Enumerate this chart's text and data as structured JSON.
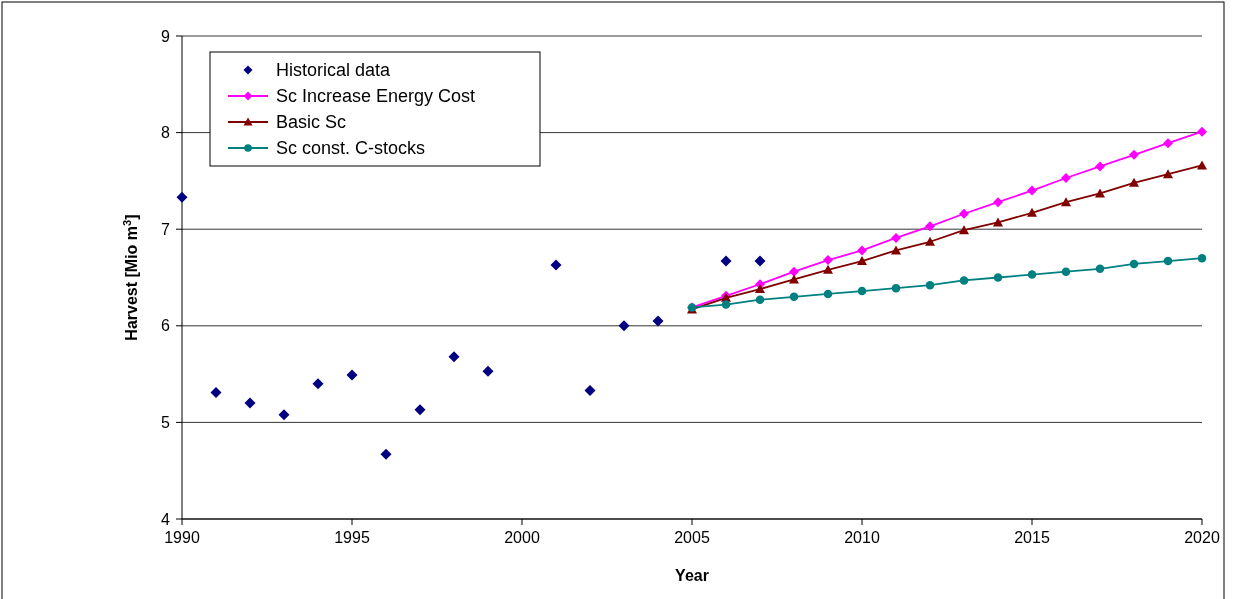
{
  "chart_data": {
    "type": "line",
    "xlabel": "Year",
    "ylabel": "Harvest [Mio m$^{3}$]",
    "xlim": [
      1990,
      2020
    ],
    "xticks": [
      1990,
      1995,
      2000,
      2005,
      2010,
      2015,
      2020
    ],
    "ylim": [
      4,
      9
    ],
    "yticks": [
      4,
      5,
      6,
      7,
      8,
      9
    ],
    "grid": "y",
    "legend": "top left",
    "line_style": "solid",
    "series": [
      {
        "name": "Historical data",
        "type": "scatter",
        "marker": "diamond",
        "color": "#000080",
        "x": [
          1990,
          1991,
          1992,
          1993,
          1994,
          1995,
          1996,
          1997,
          1998,
          1999,
          2001,
          2002,
          2003,
          2004,
          2006,
          2007
        ],
        "values": [
          7.33,
          5.31,
          5.2,
          5.08,
          5.4,
          5.49,
          4.67,
          5.13,
          5.68,
          5.53,
          6.63,
          5.33,
          6.0,
          6.05,
          6.67,
          6.67
        ]
      },
      {
        "name": "Sc Increase Energy Cost",
        "marker": "diamond",
        "color": "#ff00ff",
        "x": [
          2005,
          2006,
          2007,
          2008,
          2009,
          2010,
          2011,
          2012,
          2013,
          2014,
          2015,
          2016,
          2017,
          2018,
          2019,
          2020
        ],
        "values": [
          6.19,
          6.31,
          6.43,
          6.56,
          6.68,
          6.78,
          6.91,
          7.03,
          7.16,
          7.28,
          7.4,
          7.53,
          7.65,
          7.77,
          7.89,
          8.01
        ]
      },
      {
        "name": "Basic Sc",
        "marker": "triangle",
        "color": "#800000",
        "x": [
          2005,
          2006,
          2007,
          2008,
          2009,
          2010,
          2011,
          2012,
          2013,
          2014,
          2015,
          2016,
          2017,
          2018,
          2019,
          2020
        ],
        "values": [
          6.17,
          6.29,
          6.38,
          6.48,
          6.58,
          6.67,
          6.78,
          6.87,
          6.99,
          7.07,
          7.17,
          7.28,
          7.37,
          7.48,
          7.57,
          7.66
        ]
      },
      {
        "name": "Sc const. C-stocks",
        "marker": "circle",
        "color": "#008080",
        "x": [
          2005,
          2006,
          2007,
          2008,
          2009,
          2010,
          2011,
          2012,
          2013,
          2014,
          2015,
          2016,
          2017,
          2018,
          2019,
          2020
        ],
        "values": [
          6.19,
          6.22,
          6.27,
          6.3,
          6.33,
          6.36,
          6.39,
          6.42,
          6.47,
          6.5,
          6.53,
          6.56,
          6.59,
          6.64,
          6.67,
          6.7
        ]
      }
    ]
  }
}
